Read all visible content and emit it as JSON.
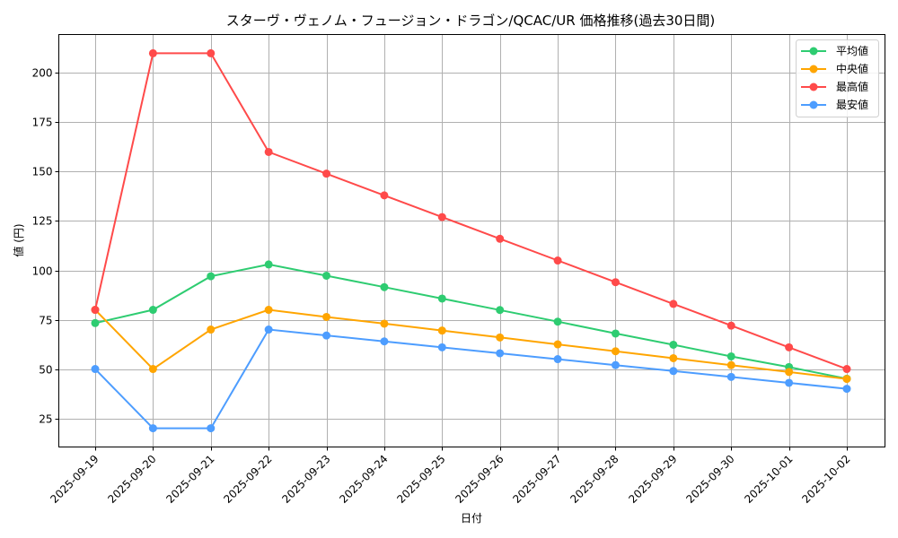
{
  "chart_data": {
    "type": "line",
    "title": "スターヴ・ヴェノム・フュージョン・ドラゴン/QCAC/UR 価格推移(過去30日間)",
    "xlabel": "日付",
    "ylabel": "値 (円)",
    "ylim": [
      10.5,
      219.5
    ],
    "yticks": [
      25,
      50,
      75,
      100,
      125,
      150,
      175,
      200
    ],
    "grid": true,
    "legend_position": "upper right",
    "categories": [
      "2025-09-19",
      "2025-09-20",
      "2025-09-21",
      "2025-09-22",
      "2025-09-23",
      "2025-09-24",
      "2025-09-25",
      "2025-09-26",
      "2025-09-27",
      "2025-09-28",
      "2025-09-29",
      "2025-09-30",
      "2025-10-01",
      "2025-10-02"
    ],
    "series": [
      {
        "name": "平均値",
        "color": "#2ecc71",
        "values": [
          73.3,
          80,
          97,
          103,
          97.3,
          91.5,
          85.7,
          79.9,
          74.0,
          68.0,
          62.3,
          56.4,
          51.0,
          45.1
        ]
      },
      {
        "name": "中央値",
        "color": "#ffa500",
        "values": [
          80,
          50,
          70,
          80,
          76.4,
          73.0,
          69.5,
          66.0,
          62.5,
          59.0,
          55.5,
          52.0,
          48.5,
          45.0
        ]
      },
      {
        "name": "最高値",
        "color": "#ff4a4a",
        "values": [
          80,
          210,
          210,
          160,
          149,
          138,
          127,
          116,
          105,
          94,
          83,
          72,
          61,
          50
        ]
      },
      {
        "name": "最安値",
        "color": "#4d9dff",
        "values": [
          50,
          20,
          20,
          70,
          67,
          64,
          61,
          58,
          55,
          52,
          49,
          46,
          43,
          40
        ]
      }
    ]
  }
}
